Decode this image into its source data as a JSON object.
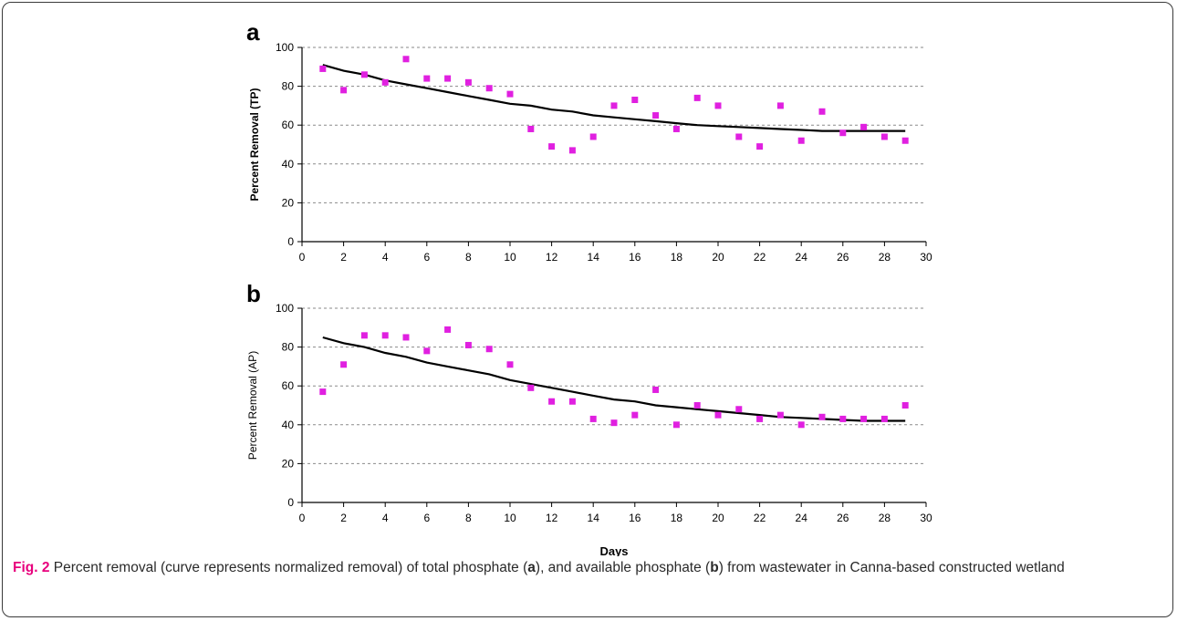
{
  "chart_data": [
    {
      "type": "scatter",
      "panel_label": "a",
      "ylabel": "Percent Removal (TP)",
      "xlabel": "",
      "xlim": [
        0,
        30
      ],
      "ylim": [
        0,
        100
      ],
      "xticks": [
        0,
        2,
        4,
        6,
        8,
        10,
        12,
        14,
        16,
        18,
        20,
        22,
        24,
        26,
        28,
        30
      ],
      "yticks": [
        0,
        20,
        40,
        60,
        80,
        100
      ],
      "grid": "horizontal dashed",
      "marker_color": "#e020e0",
      "line_color": "#000000",
      "points": {
        "x": [
          1,
          2,
          3,
          4,
          5,
          6,
          7,
          8,
          9,
          10,
          11,
          12,
          13,
          14,
          15,
          16,
          17,
          18,
          19,
          20,
          21,
          22,
          23,
          24,
          25,
          26,
          27,
          28,
          29
        ],
        "y": [
          89,
          78,
          86,
          82,
          94,
          84,
          84,
          82,
          79,
          76,
          58,
          49,
          47,
          54,
          70,
          73,
          65,
          58,
          74,
          70,
          54,
          49,
          70,
          52,
          67,
          56,
          59,
          54,
          52
        ]
      },
      "curve": {
        "x": [
          1,
          2,
          3,
          4,
          5,
          6,
          7,
          8,
          9,
          10,
          11,
          12,
          13,
          14,
          15,
          16,
          17,
          18,
          19,
          20,
          21,
          22,
          23,
          24,
          25,
          26,
          27,
          28,
          29
        ],
        "y": [
          91,
          88,
          86,
          83,
          81,
          79,
          77,
          75,
          73,
          71,
          70,
          68,
          67,
          65,
          64,
          63,
          62,
          61,
          60,
          59.5,
          59,
          58.5,
          58,
          57.5,
          57,
          57,
          57,
          57,
          57
        ]
      }
    },
    {
      "type": "scatter",
      "panel_label": "b",
      "ylabel": "Percent Removal (AP)",
      "xlabel": "Days",
      "xlim": [
        0,
        30
      ],
      "ylim": [
        0,
        100
      ],
      "xticks": [
        0,
        2,
        4,
        6,
        8,
        10,
        12,
        14,
        16,
        18,
        20,
        22,
        24,
        26,
        28,
        30
      ],
      "yticks": [
        0,
        20,
        40,
        60,
        80,
        100
      ],
      "grid": "horizontal dashed",
      "marker_color": "#e020e0",
      "line_color": "#000000",
      "points": {
        "x": [
          1,
          2,
          3,
          4,
          5,
          6,
          7,
          8,
          9,
          10,
          11,
          12,
          13,
          14,
          15,
          16,
          17,
          18,
          19,
          20,
          21,
          22,
          23,
          24,
          25,
          26,
          27,
          28,
          29
        ],
        "y": [
          57,
          71,
          86,
          86,
          85,
          78,
          89,
          81,
          79,
          71,
          59,
          52,
          52,
          43,
          41,
          45,
          58,
          40,
          50,
          45,
          48,
          43,
          45,
          40,
          44,
          43,
          43,
          43,
          50
        ]
      },
      "curve": {
        "x": [
          1,
          2,
          3,
          4,
          5,
          6,
          7,
          8,
          9,
          10,
          11,
          12,
          13,
          14,
          15,
          16,
          17,
          18,
          19,
          20,
          21,
          22,
          23,
          24,
          25,
          26,
          27,
          28,
          29
        ],
        "y": [
          85,
          82,
          80,
          77,
          75,
          72,
          70,
          68,
          66,
          63,
          61,
          59,
          57,
          55,
          53,
          52,
          50,
          49,
          48,
          47,
          46,
          45,
          44,
          43.5,
          43,
          42.5,
          42,
          42,
          42
        ]
      }
    }
  ],
  "caption": {
    "fig_label": "Fig. 2",
    "part1": " Percent removal (curve represents normalized removal) of total phosphate (",
    "ref_a": "a",
    "part2": "), and available phosphate (",
    "ref_b": "b",
    "part3": ") from wastewater in Canna-based constructed wetland"
  }
}
